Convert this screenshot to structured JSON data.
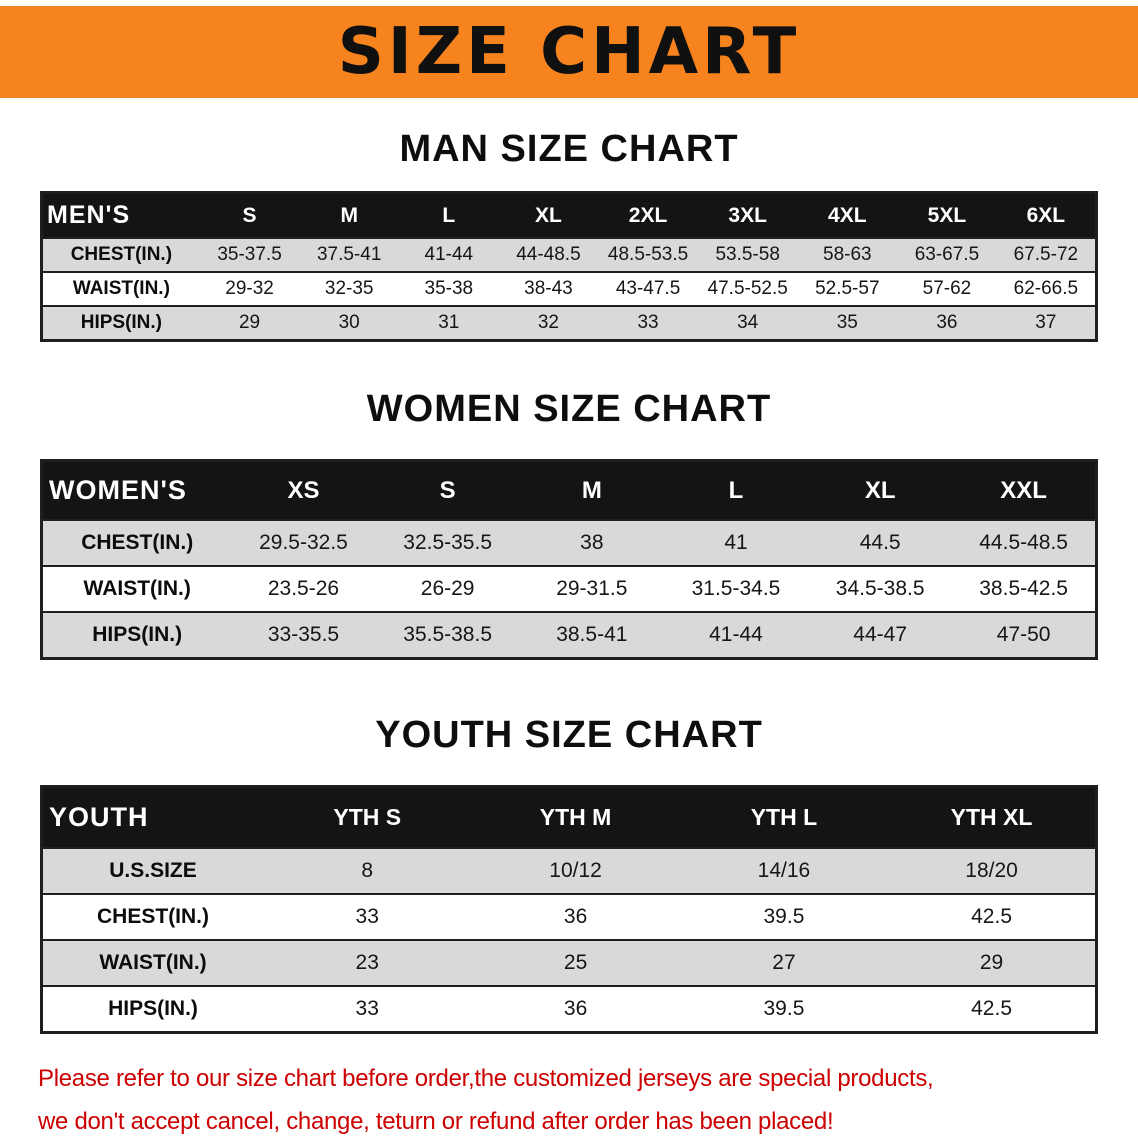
{
  "banner": {
    "title": "SIZE CHART"
  },
  "sections": [
    {
      "id": "men",
      "heading": "MAN SIZE CHART",
      "table": {
        "header_label": "MEN'S",
        "columns": [
          "S",
          "M",
          "L",
          "XL",
          "2XL",
          "3XL",
          "4XL",
          "5XL",
          "6XL"
        ],
        "rows": [
          {
            "label": "CHEST(IN.)",
            "values": [
              "35-37.5",
              "37.5-41",
              "41-44",
              "44-48.5",
              "48.5-53.5",
              "53.5-58",
              "58-63",
              "63-67.5",
              "67.5-72"
            ]
          },
          {
            "label": "WAIST(IN.)",
            "values": [
              "29-32",
              "32-35",
              "35-38",
              "38-43",
              "43-47.5",
              "47.5-52.5",
              "52.5-57",
              "57-62",
              "62-66.5"
            ]
          },
          {
            "label": "HIPS(IN.)",
            "values": [
              "29",
              "30",
              "31",
              "32",
              "33",
              "34",
              "35",
              "36",
              "37"
            ]
          }
        ]
      }
    },
    {
      "id": "women",
      "heading": "WOMEN SIZE CHART",
      "table": {
        "header_label": "WOMEN'S",
        "columns": [
          "XS",
          "S",
          "M",
          "L",
          "XL",
          "XXL"
        ],
        "rows": [
          {
            "label": "CHEST(IN.)",
            "values": [
              "29.5-32.5",
              "32.5-35.5",
              "38",
              "41",
              "44.5",
              "44.5-48.5"
            ]
          },
          {
            "label": "WAIST(IN.)",
            "values": [
              "23.5-26",
              "26-29",
              "29-31.5",
              "31.5-34.5",
              "34.5-38.5",
              "38.5-42.5"
            ]
          },
          {
            "label": "HIPS(IN.)",
            "values": [
              "33-35.5",
              "35.5-38.5",
              "38.5-41",
              "41-44",
              "44-47",
              "47-50"
            ]
          }
        ]
      }
    },
    {
      "id": "youth",
      "heading": "YOUTH SIZE CHART",
      "table": {
        "header_label": "YOUTH",
        "columns": [
          "YTH S",
          "YTH M",
          "YTH L",
          "YTH XL"
        ],
        "rows": [
          {
            "label": "U.S.SIZE",
            "values": [
              "8",
              "10/12",
              "14/16",
              "18/20"
            ]
          },
          {
            "label": "CHEST(IN.)",
            "values": [
              "33",
              "36",
              "39.5",
              "42.5"
            ]
          },
          {
            "label": "WAIST(IN.)",
            "values": [
              "23",
              "25",
              "27",
              "29"
            ]
          },
          {
            "label": "HIPS(IN.)",
            "values": [
              "33",
              "36",
              "39.5",
              "42.5"
            ]
          }
        ]
      }
    }
  ],
  "footer": {
    "line1": "Please refer to our size chart before order,the customized jerseys are special products,",
    "line2": "we don't accept cancel, change, teturn or refund after order has been placed!"
  },
  "colors": {
    "banner-orange": "#F6831D",
    "head-bg": "#141414",
    "row-gray": "#D9D9D9",
    "line": "#1F1F1F",
    "notice-red": "#CC0000"
  }
}
